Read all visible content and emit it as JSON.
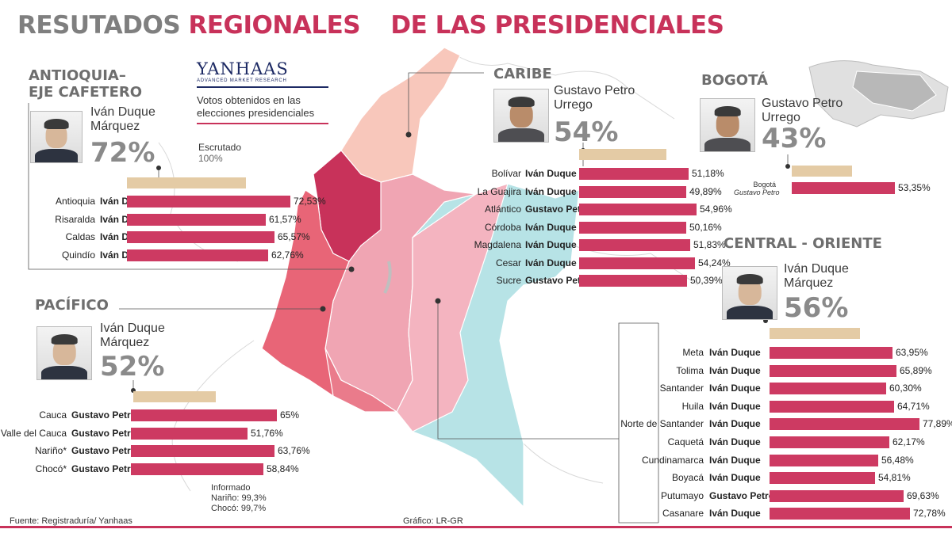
{
  "title": {
    "part1": "RESUTADOS",
    "part2": "REGIONALES",
    "part3": "DE LAS PRESIDENCIALES"
  },
  "logo": {
    "brand": "YANHAAS",
    "tagline": "ADVANCED MARKET RESEARCH",
    "description": "Votos obtenidos en las elecciones presidenciales"
  },
  "colors": {
    "bar": "#cd3a62",
    "accent": "#c8325a",
    "beige": "#e4cba5",
    "grey_text": "#7f7f7f"
  },
  "scrutiny": {
    "label": "Escrutado",
    "value": "100%"
  },
  "chart_data": [
    {
      "type": "bar",
      "region": "ANTIOQUIA–EJE CAFETERO",
      "region_lines": [
        "ANTIOQUIA–",
        "EJE CAFETERO"
      ],
      "leader": [
        "Iván Duque",
        "Márquez"
      ],
      "leader_pct": "72%",
      "categories": [
        "Antioquia",
        "Risaralda",
        "Caldas",
        "Quindío"
      ],
      "winners": [
        "Iván Duque",
        "Iván Duque",
        "Iván Duque",
        "Iván Duque"
      ],
      "values": [
        72.53,
        61.57,
        65.57,
        62.76
      ],
      "value_labels": [
        "72,53%",
        "61,57%",
        "65,57%",
        "62,76%"
      ]
    },
    {
      "type": "bar",
      "region": "CARIBE",
      "region_lines": [
        "CARIBE"
      ],
      "leader": [
        "Gustavo Petro",
        "Urrego"
      ],
      "leader_pct": "54%",
      "categories": [
        "Bolívar",
        "La Guajira",
        "Atlántico",
        "Córdoba",
        "Magdalena",
        "Cesar",
        "Sucre"
      ],
      "winners": [
        "Iván Duque",
        "Iván Duque",
        "Gustavo Petro",
        "Iván Duque",
        "Iván Duque",
        "Iván Duque",
        "Gustavo Petro"
      ],
      "values": [
        51.18,
        49.89,
        54.96,
        50.16,
        51.83,
        54.24,
        50.39
      ],
      "value_labels": [
        "51,18%",
        "49,89%",
        "54,96%",
        "50,16%",
        "51,83%",
        "54,24%",
        "50,39%"
      ]
    },
    {
      "type": "bar",
      "region": "BOGOTÁ",
      "region_lines": [
        "BOGOTÁ"
      ],
      "leader": [
        "Gustavo Petro",
        "Urrego"
      ],
      "leader_pct": "43%",
      "categories": [
        "Bogotá"
      ],
      "winners": [
        "Gustavo Petro"
      ],
      "values": [
        53.35
      ],
      "value_labels": [
        "53,35%"
      ]
    },
    {
      "type": "bar",
      "region": "PACÍFICO",
      "region_lines": [
        "PACÍFICO"
      ],
      "leader": [
        "Iván Duque",
        "Márquez"
      ],
      "leader_pct": "52%",
      "categories": [
        "Cauca",
        "Valle del Cauca",
        "Nariño*",
        "Chocó*"
      ],
      "winners": [
        "Gustavo Petro",
        "Gustavo Petro",
        "Gustavo Petro",
        "Gustavo Petro"
      ],
      "values": [
        65,
        51.76,
        63.76,
        58.84
      ],
      "value_labels": [
        "65%",
        "51,76%",
        "63,76%",
        "58,84%"
      ]
    },
    {
      "type": "bar",
      "region": "CENTRAL - ORIENTE",
      "region_lines": [
        "CENTRAL - ORIENTE"
      ],
      "leader": [
        "Iván Duque",
        "Márquez"
      ],
      "leader_pct": "56%",
      "categories": [
        "Meta",
        "Tolima",
        "Santander",
        "Huila",
        "Norte de Santander",
        "Caquetá",
        "Cundinamarca",
        "Boyacá",
        "Putumayo",
        "Casanare"
      ],
      "winners": [
        "Iván Duque",
        "Iván Duque",
        "Iván Duque",
        "Iván Duque",
        "Iván Duque",
        "Iván Duque",
        "Iván Duque",
        "Iván Duque",
        "Gustavo Petro",
        "Iván Duque"
      ],
      "values": [
        63.95,
        65.89,
        60.3,
        64.71,
        77.89,
        62.17,
        56.48,
        54.81,
        69.63,
        72.78
      ],
      "value_labels": [
        "63,95%",
        "65,89%",
        "60,30%",
        "64,71%",
        "77,89%",
        "62,17%",
        "56,48%",
        "54,81%",
        "69,63%",
        "72,78%"
      ]
    }
  ],
  "pacifico_note": {
    "label": "Informado",
    "narino": "Nariño: 99,3%",
    "choco": "Chocó: 99,7%"
  },
  "footer": {
    "source": "Fuente: Registraduría/ Yanhaas",
    "credit": "Gráfico: LR-GR"
  }
}
